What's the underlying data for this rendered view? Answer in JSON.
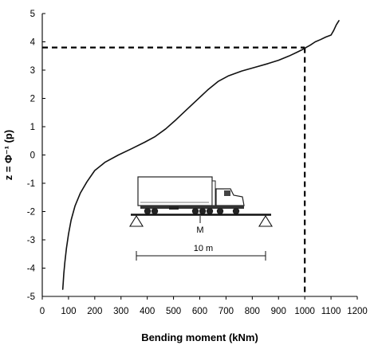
{
  "chart_data": {
    "type": "line",
    "title": "",
    "xlabel": "Bending moment (kNm)",
    "ylabel": "z = Φ⁻¹ (p)",
    "xlim": [
      0,
      1200
    ],
    "ylim": [
      -5,
      5
    ],
    "x_ticks": [
      "0",
      "100",
      "200",
      "300",
      "400",
      "500",
      "600",
      "700",
      "800",
      "900",
      "1000",
      "1100",
      "1200"
    ],
    "y_ticks": [
      "-5",
      "-4",
      "-3",
      "-2",
      "-1",
      "0",
      "1",
      "2",
      "3",
      "4",
      "5"
    ],
    "grid": false,
    "legend": "none",
    "series": [
      {
        "color": "#111111",
        "x": [
          78,
          80,
          82,
          86,
          92,
          100,
          110,
          125,
          145,
          170,
          200,
          240,
          290,
          340,
          390,
          430,
          470,
          510,
          550,
          590,
          630,
          670,
          710,
          760,
          810,
          860,
          900,
          940,
          970,
          990,
          1005,
          1020,
          1040,
          1060,
          1080,
          1100,
          1110,
          1120,
          1130
        ],
        "y": [
          -4.75,
          -4.5,
          -4.2,
          -3.8,
          -3.3,
          -2.8,
          -2.3,
          -1.8,
          -1.35,
          -0.95,
          -0.55,
          -0.25,
          0,
          0.22,
          0.45,
          0.65,
          0.92,
          1.25,
          1.6,
          1.95,
          2.3,
          2.6,
          2.8,
          2.97,
          3.1,
          3.23,
          3.35,
          3.5,
          3.63,
          3.72,
          3.8,
          3.88,
          4.0,
          4.08,
          4.17,
          4.24,
          4.4,
          4.6,
          4.75
        ]
      }
    ],
    "reference_point": {
      "x": 1000,
      "y": 3.8,
      "style": "dashed"
    }
  },
  "inset": {
    "midspan_label": "M",
    "span_label": "10 m"
  }
}
